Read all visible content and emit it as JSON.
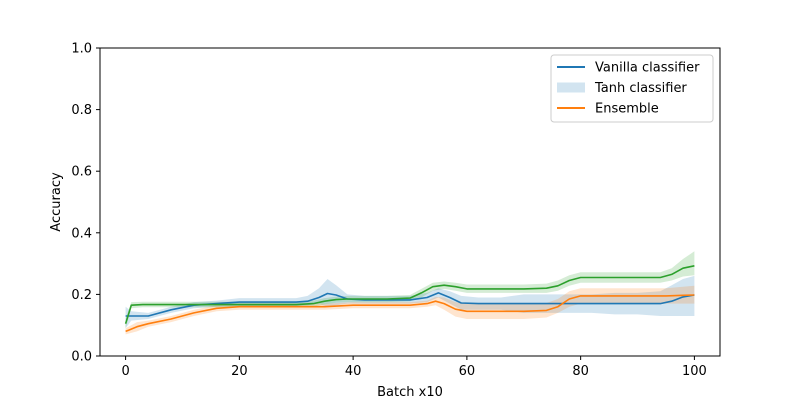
{
  "chart_data": {
    "type": "line",
    "title": "",
    "xlabel": "Batch x10",
    "ylabel": "Accuracy",
    "xlim": [
      -4.5,
      104.5
    ],
    "ylim": [
      0.0,
      1.0
    ],
    "xticks": [
      0,
      20,
      40,
      60,
      80,
      100
    ],
    "yticks": [
      0.0,
      0.2,
      0.4,
      0.6,
      0.8,
      1.0
    ],
    "grid": false,
    "legend_placement": "top-right",
    "legend": [
      {
        "label": "Vanilla classifier",
        "kind": "line",
        "color": "#1f77b4"
      },
      {
        "label": "Tanh classifier",
        "kind": "band",
        "color": "#1f77b4"
      },
      {
        "label": "Ensemble",
        "kind": "line",
        "color": "#ff7f0e"
      }
    ],
    "series": [
      {
        "name": "Vanilla classifier",
        "color": "#1f77b4",
        "x": [
          0,
          1,
          4,
          8,
          12,
          16,
          20,
          25,
          30,
          32,
          34,
          35.5,
          37,
          39,
          42,
          46,
          50,
          53,
          55,
          57,
          59,
          62,
          66,
          70,
          74,
          78,
          82,
          86,
          90,
          94,
          96,
          98,
          100
        ],
        "y": [
          0.13,
          0.13,
          0.13,
          0.15,
          0.165,
          0.17,
          0.175,
          0.175,
          0.175,
          0.178,
          0.19,
          0.203,
          0.198,
          0.185,
          0.182,
          0.182,
          0.182,
          0.19,
          0.205,
          0.19,
          0.172,
          0.17,
          0.17,
          0.17,
          0.17,
          0.17,
          0.17,
          0.17,
          0.17,
          0.17,
          0.178,
          0.192,
          0.198
        ],
        "lower": [
          0.09,
          0.115,
          0.12,
          0.14,
          0.155,
          0.16,
          0.162,
          0.162,
          0.162,
          0.165,
          0.17,
          0.16,
          0.165,
          0.17,
          0.17,
          0.17,
          0.17,
          0.175,
          0.19,
          0.17,
          0.15,
          0.15,
          0.15,
          0.14,
          0.14,
          0.14,
          0.14,
          0.135,
          0.135,
          0.13,
          0.13,
          0.13,
          0.13
        ],
        "upper": [
          0.16,
          0.145,
          0.14,
          0.16,
          0.175,
          0.18,
          0.188,
          0.188,
          0.188,
          0.195,
          0.22,
          0.25,
          0.23,
          0.2,
          0.195,
          0.195,
          0.195,
          0.205,
          0.22,
          0.21,
          0.195,
          0.19,
          0.19,
          0.2,
          0.2,
          0.2,
          0.2,
          0.205,
          0.205,
          0.21,
          0.23,
          0.25,
          0.26
        ]
      },
      {
        "name": "Ensemble",
        "color": "#ff7f0e",
        "x": [
          0,
          2,
          4,
          8,
          12,
          16,
          20,
          25,
          30,
          35,
          40,
          45,
          50,
          53,
          54.5,
          56,
          58,
          60,
          65,
          70,
          74,
          76,
          78,
          80,
          85,
          90,
          95,
          98,
          100
        ],
        "y": [
          0.08,
          0.095,
          0.105,
          0.12,
          0.14,
          0.155,
          0.16,
          0.16,
          0.16,
          0.16,
          0.165,
          0.165,
          0.165,
          0.17,
          0.178,
          0.17,
          0.152,
          0.145,
          0.145,
          0.145,
          0.148,
          0.16,
          0.185,
          0.195,
          0.195,
          0.195,
          0.195,
          0.197,
          0.198
        ],
        "lower": [
          0.07,
          0.08,
          0.095,
          0.11,
          0.13,
          0.145,
          0.15,
          0.15,
          0.15,
          0.15,
          0.155,
          0.155,
          0.155,
          0.16,
          0.165,
          0.15,
          0.128,
          0.12,
          0.12,
          0.12,
          0.125,
          0.14,
          0.16,
          0.17,
          0.17,
          0.17,
          0.17,
          0.17,
          0.17
        ],
        "upper": [
          0.09,
          0.11,
          0.115,
          0.13,
          0.15,
          0.165,
          0.17,
          0.17,
          0.17,
          0.17,
          0.175,
          0.175,
          0.175,
          0.18,
          0.192,
          0.19,
          0.175,
          0.17,
          0.17,
          0.17,
          0.172,
          0.185,
          0.21,
          0.22,
          0.22,
          0.22,
          0.22,
          0.225,
          0.228
        ]
      },
      {
        "name": "",
        "color": "#2ca02c",
        "x": [
          0,
          1,
          3,
          8,
          14,
          20,
          25,
          30,
          33,
          35,
          37,
          39,
          42,
          46,
          50,
          52,
          54,
          56,
          58,
          60,
          65,
          70,
          74,
          76,
          78,
          80,
          85,
          90,
          94,
          96,
          98,
          100
        ],
        "y": [
          0.105,
          0.165,
          0.167,
          0.167,
          0.167,
          0.167,
          0.167,
          0.167,
          0.17,
          0.178,
          0.183,
          0.185,
          0.185,
          0.185,
          0.188,
          0.205,
          0.225,
          0.23,
          0.225,
          0.218,
          0.218,
          0.218,
          0.22,
          0.228,
          0.245,
          0.255,
          0.255,
          0.255,
          0.255,
          0.265,
          0.285,
          0.293
        ],
        "lower": [
          0.09,
          0.155,
          0.158,
          0.158,
          0.158,
          0.158,
          0.158,
          0.158,
          0.16,
          0.168,
          0.173,
          0.175,
          0.175,
          0.175,
          0.178,
          0.19,
          0.212,
          0.218,
          0.212,
          0.205,
          0.205,
          0.205,
          0.205,
          0.212,
          0.228,
          0.238,
          0.238,
          0.238,
          0.238,
          0.245,
          0.258,
          0.262
        ],
        "upper": [
          0.12,
          0.175,
          0.176,
          0.176,
          0.176,
          0.176,
          0.176,
          0.176,
          0.18,
          0.188,
          0.193,
          0.195,
          0.195,
          0.195,
          0.198,
          0.218,
          0.238,
          0.242,
          0.238,
          0.232,
          0.232,
          0.232,
          0.235,
          0.245,
          0.262,
          0.272,
          0.272,
          0.272,
          0.272,
          0.285,
          0.315,
          0.34
        ]
      }
    ]
  }
}
